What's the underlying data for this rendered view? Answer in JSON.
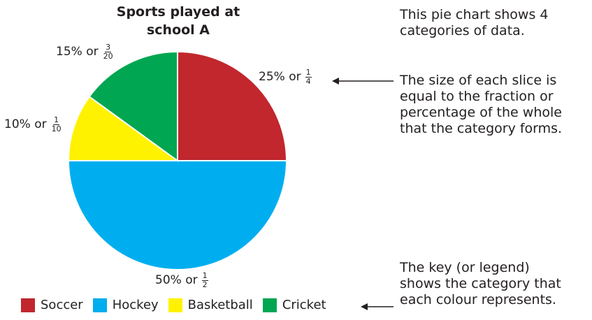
{
  "chart_data": {
    "type": "pie",
    "title_lines": [
      "Sports played at",
      "school A"
    ],
    "start_angle_deg": 0,
    "direction": "clockwise",
    "slices": [
      {
        "name": "Soccer",
        "value": 25,
        "percent_label": "25% or",
        "frac_num": "1",
        "frac_den": "4",
        "color": "#c1272d"
      },
      {
        "name": "Hockey",
        "value": 50,
        "percent_label": "50% or",
        "frac_num": "1",
        "frac_den": "2",
        "color": "#00aeef"
      },
      {
        "name": "Basketball",
        "value": 10,
        "percent_label": "10% or",
        "frac_num": "1",
        "frac_den": "10",
        "color": "#fff200"
      },
      {
        "name": "Cricket",
        "value": 15,
        "percent_label": "15% or",
        "frac_num": "3",
        "frac_den": "20",
        "color": "#00a651"
      }
    ],
    "legend": {
      "placement": "bottom",
      "items": [
        "Soccer",
        "Hockey",
        "Basketball",
        "Cricket"
      ]
    }
  },
  "annotations": {
    "intro": [
      "This pie chart shows 4",
      "categories of data."
    ],
    "slice_size": [
      "The size of each slice is",
      "equal to the fraction or",
      "percentage of the whole",
      "that the category forms."
    ],
    "key": [
      "The key (or legend)",
      "shows the category that",
      "each colour represents."
    ]
  }
}
